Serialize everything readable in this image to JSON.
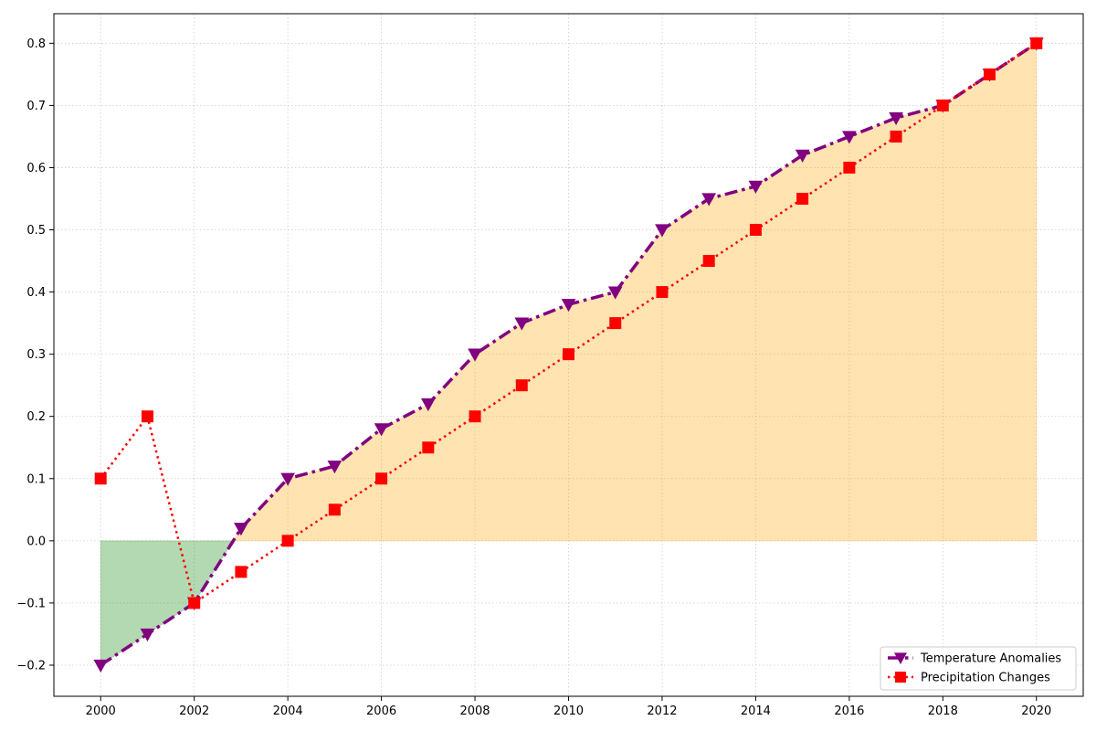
{
  "chart_data": {
    "type": "line",
    "title": "",
    "xlabel": "",
    "ylabel": "",
    "x": [
      2000,
      2001,
      2002,
      2003,
      2004,
      2005,
      2006,
      2007,
      2008,
      2009,
      2010,
      2011,
      2012,
      2013,
      2014,
      2015,
      2016,
      2017,
      2018,
      2019,
      2020
    ],
    "series": [
      {
        "name": "Temperature Anomalies",
        "values": [
          -0.2,
          -0.15,
          -0.1,
          0.02,
          0.1,
          0.12,
          0.18,
          0.22,
          0.3,
          0.35,
          0.38,
          0.4,
          0.5,
          0.55,
          0.57,
          0.62,
          0.65,
          0.68,
          0.7,
          0.75,
          0.8
        ],
        "color": "#800080",
        "line_style": "dashdot",
        "marker": "triangle-down"
      },
      {
        "name": "Precipitation Changes",
        "values": [
          0.1,
          0.2,
          -0.1,
          -0.05,
          0.0,
          0.05,
          0.1,
          0.15,
          0.2,
          0.25,
          0.3,
          0.35,
          0.4,
          0.45,
          0.5,
          0.55,
          0.6,
          0.65,
          0.7,
          0.75,
          0.8
        ],
        "color": "#ff0000",
        "line_style": "dotted",
        "marker": "square"
      }
    ],
    "fill": {
      "baseline": 0,
      "based_on": "Temperature Anomalies",
      "positive_color": "#ffa500",
      "negative_color": "#008000",
      "opacity": 0.3
    },
    "xlim": [
      1999,
      2021
    ],
    "ylim": [
      -0.25,
      0.8
    ],
    "x_ticks": [
      2000,
      2002,
      2004,
      2006,
      2008,
      2010,
      2012,
      2014,
      2016,
      2018,
      2020
    ],
    "y_ticks": [
      -0.2,
      -0.1,
      0.0,
      0.1,
      0.2,
      0.3,
      0.4,
      0.5,
      0.6,
      0.7,
      0.8
    ],
    "y_tick_labels": [
      "−0.2",
      "−0.1",
      "0.0",
      "0.1",
      "0.2",
      "0.3",
      "0.4",
      "0.5",
      "0.6",
      "0.7",
      "0.8"
    ],
    "grid": true,
    "legend": "bottom-right"
  }
}
